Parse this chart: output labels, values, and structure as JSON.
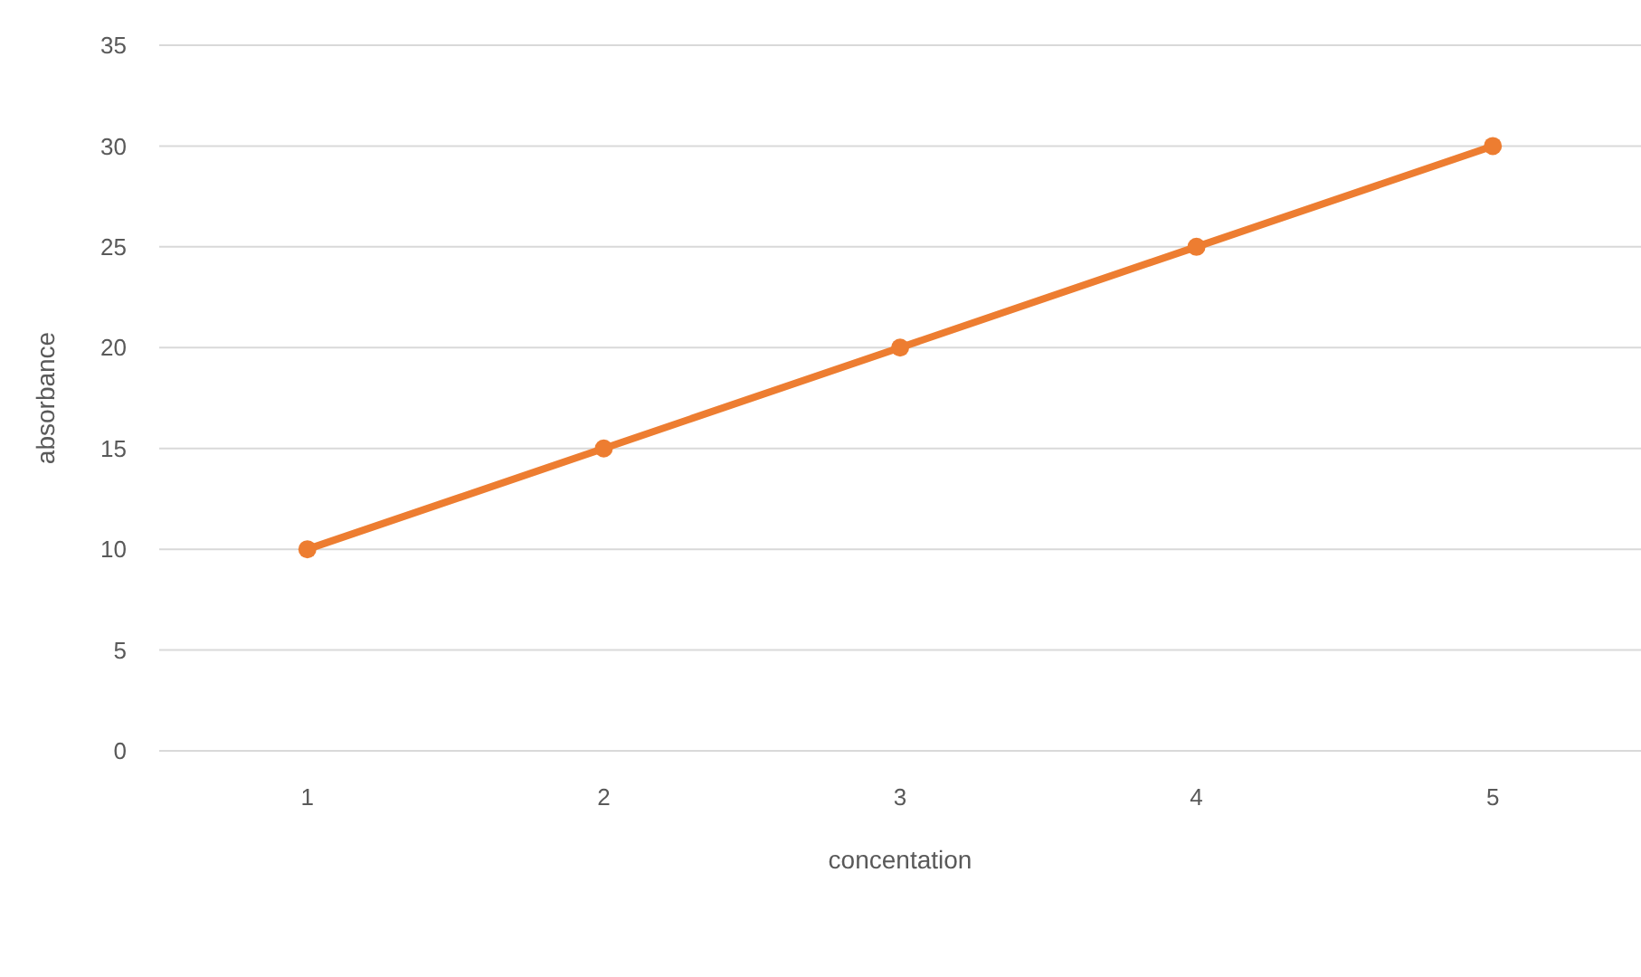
{
  "chart_data": {
    "type": "line",
    "xlabel": "concentation",
    "ylabel": "absorbance",
    "categories": [
      "1",
      "2",
      "3",
      "4",
      "5"
    ],
    "series": [
      {
        "color": "#ed7d31",
        "values": [
          10,
          15,
          20,
          25,
          30
        ]
      }
    ],
    "ylim": [
      0,
      35
    ],
    "yticks": [
      0,
      5,
      10,
      15,
      20,
      25,
      30,
      35
    ],
    "grid": "y",
    "marker": "circle",
    "line_style": "solid"
  }
}
